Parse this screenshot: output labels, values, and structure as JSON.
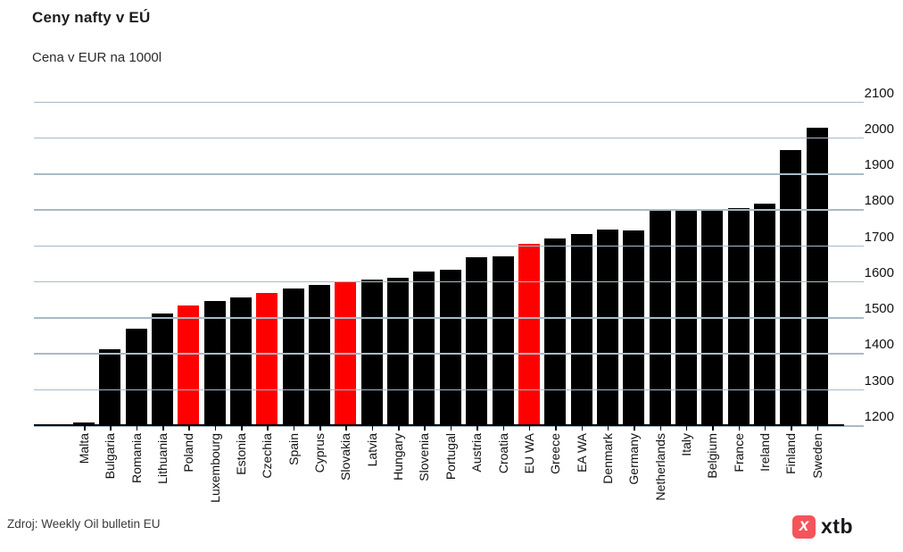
{
  "header": {
    "title": "Ceny nafty v EÚ",
    "subtitle": "Cena v EUR na 1000l"
  },
  "footer": {
    "source": "Zdroj: Weekly Oil bulletin EU",
    "brand": "xtb",
    "brand_icon_glyph": "x"
  },
  "colors": {
    "bar": "#000000",
    "highlight": "#ff0000",
    "gridline": "#a8bbc6",
    "axis": "#000000",
    "brand_red": "#f5545a",
    "text": "#111111"
  },
  "chart_data": {
    "type": "bar",
    "title": "Ceny nafty v EÚ",
    "subtitle": "Cena v EUR na 1000l",
    "source": "Zdroj: Weekly Oil bulletin EU",
    "categories": [
      "Malta",
      "Bulgaria",
      "Romania",
      "Lithuania",
      "Poland",
      "Luxembourg",
      "Estonia",
      "Czechia",
      "Spain",
      "Cyprus",
      "Slovakia",
      "Latvia",
      "Hungary",
      "Slovenia",
      "Portugal",
      "Austria",
      "Croatia",
      "EU WA",
      "Greece",
      "EA WA",
      "Denmark",
      "Germany",
      "Netherlands",
      "Italy",
      "Belgium",
      "France",
      "Ireland",
      "Finland",
      "Sweden"
    ],
    "values": [
      1208,
      1411,
      1468,
      1511,
      1533,
      1544,
      1556,
      1568,
      1580,
      1591,
      1597,
      1604,
      1610,
      1627,
      1632,
      1666,
      1670,
      1703,
      1720,
      1732,
      1743,
      1741,
      1795,
      1795,
      1795,
      1804,
      1815,
      1965,
      2028
    ],
    "highlighted": [
      "Poland",
      "Czechia",
      "Slovakia",
      "EU WA"
    ],
    "bar_color": "#000000",
    "highlight_color": "#ff0000",
    "ylim": [
      1200,
      2100
    ],
    "yticks": [
      1200,
      1300,
      1400,
      1500,
      1600,
      1700,
      1800,
      1900,
      2000,
      2100
    ],
    "ylabel": "",
    "xlabel": "",
    "grid": true,
    "gridlines_over_bars": true,
    "legend": "none",
    "y_axis_side": "right",
    "x_label_rotation": -90
  }
}
